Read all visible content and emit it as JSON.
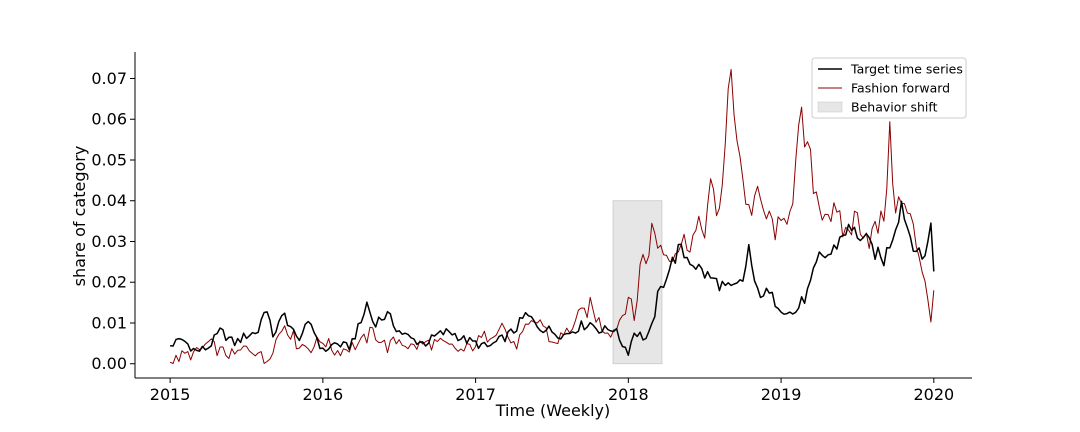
{
  "chart_data": {
    "type": "line",
    "title": "",
    "xlabel": "Time (Weekly)",
    "ylabel": "share of category",
    "xlim": [
      2014.77,
      2020.25
    ],
    "ylim": [
      -0.0035,
      0.0765
    ],
    "x_ticks": [
      2015,
      2016,
      2017,
      2018,
      2019,
      2020
    ],
    "x_tick_labels": [
      "2015",
      "2016",
      "2017",
      "2018",
      "2019",
      "2020"
    ],
    "y_ticks": [
      0.0,
      0.01,
      0.02,
      0.03,
      0.04,
      0.05,
      0.06,
      0.07
    ],
    "y_tick_labels": [
      "0.00",
      "0.01",
      "0.02",
      "0.03",
      "0.04",
      "0.05",
      "0.06",
      "0.07"
    ],
    "grid": false,
    "legend_position": "top-right",
    "shaded_regions": [
      {
        "name": "Behavior shift",
        "x_start": 2017.9,
        "x_end": 2018.22,
        "y_start": 0.0,
        "y_end": 0.04,
        "color": "#e6e6e6"
      }
    ],
    "series": [
      {
        "name": "Target time series",
        "color": "#000000",
        "anchors": [
          [
            2015.0,
            0.0045
          ],
          [
            2015.08,
            0.006
          ],
          [
            2015.17,
            0.003
          ],
          [
            2015.25,
            0.004
          ],
          [
            2015.33,
            0.008
          ],
          [
            2015.42,
            0.005
          ],
          [
            2015.5,
            0.007
          ],
          [
            2015.58,
            0.008
          ],
          [
            2015.62,
            0.0145
          ],
          [
            2015.67,
            0.007
          ],
          [
            2015.75,
            0.012
          ],
          [
            2015.83,
            0.006
          ],
          [
            2015.92,
            0.01
          ],
          [
            2016.0,
            0.003
          ],
          [
            2016.08,
            0.005
          ],
          [
            2016.17,
            0.004
          ],
          [
            2016.25,
            0.01
          ],
          [
            2016.29,
            0.015
          ],
          [
            2016.33,
            0.01
          ],
          [
            2016.42,
            0.012
          ],
          [
            2016.5,
            0.008
          ],
          [
            2016.58,
            0.006
          ],
          [
            2016.67,
            0.005
          ],
          [
            2016.75,
            0.007
          ],
          [
            2016.83,
            0.008
          ],
          [
            2016.92,
            0.006
          ],
          [
            2017.0,
            0.005
          ],
          [
            2017.08,
            0.004
          ],
          [
            2017.17,
            0.006
          ],
          [
            2017.25,
            0.008
          ],
          [
            2017.33,
            0.012
          ],
          [
            2017.42,
            0.009
          ],
          [
            2017.5,
            0.008
          ],
          [
            2017.58,
            0.007
          ],
          [
            2017.67,
            0.009
          ],
          [
            2017.75,
            0.01
          ],
          [
            2017.83,
            0.008
          ],
          [
            2017.9,
            0.009
          ],
          [
            2017.96,
            0.005
          ],
          [
            2018.0,
            0.003
          ],
          [
            2018.04,
            0.008
          ],
          [
            2018.08,
            0.007
          ],
          [
            2018.12,
            0.006
          ],
          [
            2018.15,
            0.008
          ],
          [
            2018.19,
            0.016
          ],
          [
            2018.25,
            0.022
          ],
          [
            2018.33,
            0.028
          ],
          [
            2018.42,
            0.025
          ],
          [
            2018.5,
            0.022
          ],
          [
            2018.58,
            0.02
          ],
          [
            2018.67,
            0.018
          ],
          [
            2018.75,
            0.02
          ],
          [
            2018.79,
            0.029
          ],
          [
            2018.83,
            0.018
          ],
          [
            2018.92,
            0.017
          ],
          [
            2019.0,
            0.014
          ],
          [
            2019.08,
            0.012
          ],
          [
            2019.17,
            0.017
          ],
          [
            2019.25,
            0.026
          ],
          [
            2019.33,
            0.027
          ],
          [
            2019.42,
            0.033
          ],
          [
            2019.5,
            0.032
          ],
          [
            2019.58,
            0.029
          ],
          [
            2019.67,
            0.025
          ],
          [
            2019.75,
            0.034
          ],
          [
            2019.79,
            0.04
          ],
          [
            2019.83,
            0.033
          ],
          [
            2019.92,
            0.025
          ],
          [
            2019.96,
            0.03
          ],
          [
            2019.98,
            0.034
          ],
          [
            2020.0,
            0.023
          ]
        ]
      },
      {
        "name": "Fashion forward",
        "color": "#8b0000",
        "anchors": [
          [
            2015.0,
            0.0
          ],
          [
            2015.08,
            0.002
          ],
          [
            2015.17,
            0.0025
          ],
          [
            2015.25,
            0.005
          ],
          [
            2015.33,
            0.003
          ],
          [
            2015.42,
            0.002
          ],
          [
            2015.5,
            0.004
          ],
          [
            2015.58,
            0.003
          ],
          [
            2015.62,
            0.0
          ],
          [
            2015.67,
            0.004
          ],
          [
            2015.75,
            0.01
          ],
          [
            2015.83,
            0.005
          ],
          [
            2015.92,
            0.004
          ],
          [
            2016.0,
            0.006
          ],
          [
            2016.08,
            0.003
          ],
          [
            2016.17,
            0.004
          ],
          [
            2016.25,
            0.005
          ],
          [
            2016.33,
            0.008
          ],
          [
            2016.42,
            0.004
          ],
          [
            2016.5,
            0.006
          ],
          [
            2016.58,
            0.004
          ],
          [
            2016.67,
            0.005
          ],
          [
            2016.75,
            0.005
          ],
          [
            2016.83,
            0.004
          ],
          [
            2016.92,
            0.003
          ],
          [
            2017.0,
            0.005
          ],
          [
            2017.08,
            0.007
          ],
          [
            2017.17,
            0.01
          ],
          [
            2017.25,
            0.004
          ],
          [
            2017.33,
            0.008
          ],
          [
            2017.42,
            0.011
          ],
          [
            2017.5,
            0.005
          ],
          [
            2017.58,
            0.007
          ],
          [
            2017.67,
            0.011
          ],
          [
            2017.75,
            0.014
          ],
          [
            2017.83,
            0.009
          ],
          [
            2017.9,
            0.008
          ],
          [
            2017.96,
            0.012
          ],
          [
            2018.0,
            0.017
          ],
          [
            2018.04,
            0.01
          ],
          [
            2018.08,
            0.026
          ],
          [
            2018.12,
            0.025
          ],
          [
            2018.15,
            0.033
          ],
          [
            2018.19,
            0.03
          ],
          [
            2018.25,
            0.027
          ],
          [
            2018.33,
            0.029
          ],
          [
            2018.42,
            0.031
          ],
          [
            2018.5,
            0.034
          ],
          [
            2018.54,
            0.043
          ],
          [
            2018.58,
            0.035
          ],
          [
            2018.63,
            0.05
          ],
          [
            2018.67,
            0.072
          ],
          [
            2018.71,
            0.058
          ],
          [
            2018.75,
            0.045
          ],
          [
            2018.79,
            0.037
          ],
          [
            2018.83,
            0.041
          ],
          [
            2018.92,
            0.035
          ],
          [
            2019.0,
            0.032
          ],
          [
            2019.08,
            0.043
          ],
          [
            2019.13,
            0.059
          ],
          [
            2019.17,
            0.052
          ],
          [
            2019.25,
            0.039
          ],
          [
            2019.33,
            0.037
          ],
          [
            2019.42,
            0.032
          ],
          [
            2019.5,
            0.036
          ],
          [
            2019.58,
            0.031
          ],
          [
            2019.67,
            0.035
          ],
          [
            2019.71,
            0.055
          ],
          [
            2019.75,
            0.04
          ],
          [
            2019.83,
            0.037
          ],
          [
            2019.92,
            0.025
          ],
          [
            2019.96,
            0.017
          ],
          [
            2019.98,
            0.011
          ],
          [
            2020.0,
            0.017
          ]
        ]
      }
    ]
  }
}
